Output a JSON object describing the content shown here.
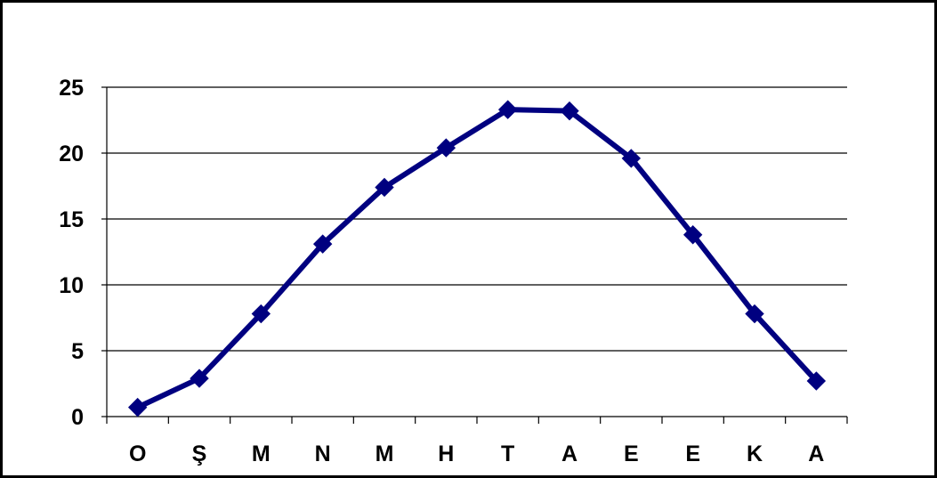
{
  "chart_data": {
    "type": "line",
    "title": "",
    "xlabel": "",
    "ylabel": "",
    "categories": [
      "O",
      "Ş",
      "M",
      "N",
      "M",
      "H",
      "T",
      "A",
      "E",
      "E",
      "K",
      "A"
    ],
    "series": [
      {
        "values": [
          0.7,
          2.9,
          7.8,
          13.1,
          17.4,
          20.4,
          23.3,
          23.2,
          19.6,
          13.8,
          7.8,
          2.7
        ]
      }
    ],
    "ylim": [
      0,
      25
    ],
    "yticks": [
      "0",
      "5",
      "10",
      "15",
      "20",
      "25"
    ],
    "grid": "horizontal",
    "legend": "none",
    "line_color": "#000080",
    "marker": "diamond"
  }
}
